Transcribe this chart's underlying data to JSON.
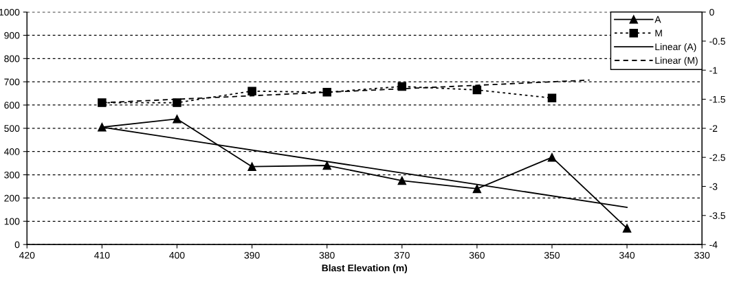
{
  "chart_data": {
    "type": "line",
    "xlabel": "Blast Elevation (m)",
    "x": [
      410,
      400,
      390,
      380,
      370,
      360,
      350,
      340
    ],
    "xlim": [
      420,
      330
    ],
    "xticks": [
      420,
      410,
      400,
      390,
      380,
      370,
      360,
      350,
      340,
      330
    ],
    "ylim": [
      0,
      1000
    ],
    "yticks": [
      0,
      100,
      200,
      300,
      400,
      500,
      600,
      700,
      800,
      900,
      1000
    ],
    "y2lim": [
      -4,
      0
    ],
    "y2ticks": [
      -4,
      -3.5,
      -3,
      -2.5,
      -2,
      -1.5,
      -1,
      -0.5,
      0
    ],
    "grid": "y",
    "legend": "top right",
    "series": [
      {
        "name": "A",
        "color": "#000000",
        "marker": "triangle",
        "line_style": "solid",
        "values": [
          505,
          540,
          335,
          340,
          275,
          240,
          375,
          70
        ]
      },
      {
        "name": "M",
        "color": "#000000",
        "marker": "square",
        "line_style": "dotted",
        "axis": "y2",
        "values": [
          -1.56,
          -1.56,
          -1.36,
          -1.38,
          -1.28,
          -1.34,
          -1.48,
          null
        ]
      },
      {
        "name": "Linear (A)",
        "color": "#000000",
        "marker": "none",
        "line_style": "solid",
        "x": [
          410,
          340
        ],
        "values": [
          505,
          160
        ]
      },
      {
        "name": "Linear (M)",
        "color": "#000000",
        "marker": "none",
        "line_style": "dashed",
        "axis": "y2",
        "x": [
          410,
          345
        ],
        "values": [
          -1.56,
          -1.17
        ]
      }
    ]
  }
}
